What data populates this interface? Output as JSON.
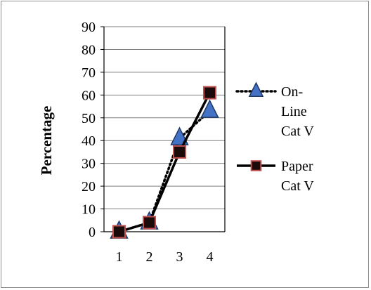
{
  "chart_data": {
    "type": "line",
    "title": "",
    "xlabel": "",
    "ylabel": "Percentage",
    "ylim": [
      0,
      90
    ],
    "yticks": [
      0,
      10,
      20,
      30,
      40,
      50,
      60,
      70,
      80,
      90
    ],
    "categories": [
      "1",
      "2",
      "3",
      "4"
    ],
    "grid": "horizontal",
    "legend_position": "right",
    "series": [
      {
        "name": "On-Line Cat V",
        "legend_lines": [
          "On-",
          "Line",
          "Cat V"
        ],
        "values": [
          0,
          4,
          41,
          53
        ],
        "marker": "triangle",
        "line_style": "dotted",
        "line_color": "#000000",
        "marker_color": "#1f3864",
        "marker_fill": "#4472c4"
      },
      {
        "name": "Paper Cat V",
        "legend_lines": [
          "Paper",
          "Cat V"
        ],
        "values": [
          0,
          4,
          35,
          61
        ],
        "marker": "square",
        "line_style": "solid",
        "line_color": "#000000",
        "marker_color": "#c0504d",
        "marker_fill": "#1a0a0a"
      }
    ]
  }
}
